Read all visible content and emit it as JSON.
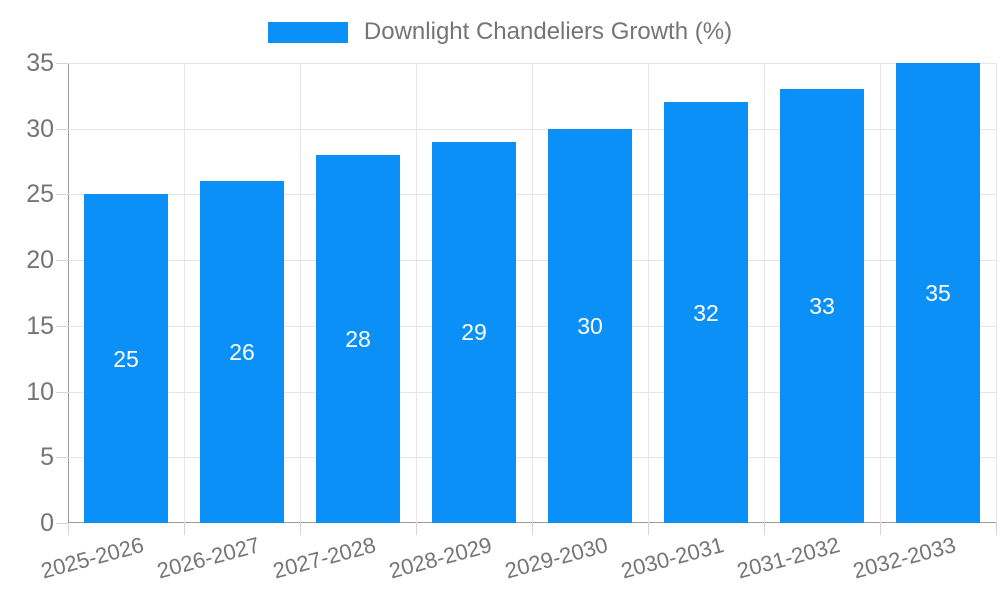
{
  "legend": {
    "label": "Downlight Chandeliers Growth (%)"
  },
  "chart_data": {
    "type": "bar",
    "title": "Downlight Chandeliers Growth (%)",
    "categories": [
      "2025-2026",
      "2026-2027",
      "2027-2028",
      "2028-2029",
      "2029-2030",
      "2030-2031",
      "2031-2032",
      "2032-2033"
    ],
    "values": [
      25,
      26,
      28,
      29,
      30,
      32,
      33,
      35
    ],
    "xlabel": "",
    "ylabel": "",
    "ylim": [
      0,
      35
    ],
    "yticks": [
      0,
      5,
      10,
      15,
      20,
      25,
      30,
      35
    ],
    "grid": true,
    "legend_position": "top",
    "bar_color": "#0b90f8",
    "value_label_color": "#ffffff",
    "axis_text_color": "#757575",
    "gridline_color": "#e6e6e6",
    "axis_line_color": "#9a9a9a"
  }
}
